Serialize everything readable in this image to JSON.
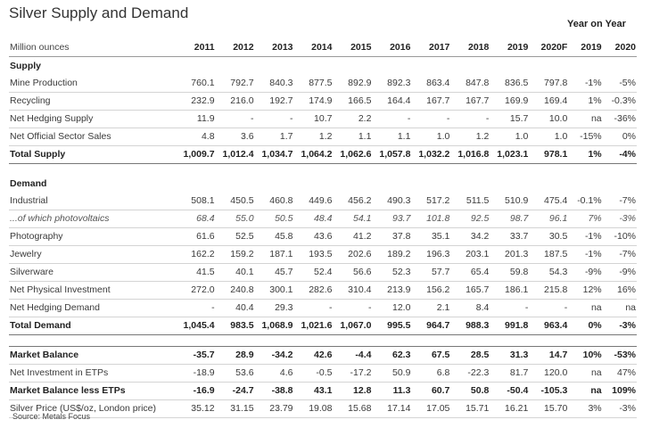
{
  "title": "Silver Supply and Demand",
  "yoy_header": "Year on Year",
  "header": {
    "label": "Million ounces",
    "cols": [
      "2011",
      "2012",
      "2013",
      "2014",
      "2015",
      "2016",
      "2017",
      "2018",
      "2019",
      "2020F",
      "2019",
      "2020"
    ]
  },
  "sections": [
    {
      "title": "Supply",
      "rows": [
        {
          "label": "Mine Production",
          "style": "row",
          "values": [
            "760.1",
            "792.7",
            "840.3",
            "877.5",
            "892.9",
            "892.3",
            "863.4",
            "847.8",
            "836.5",
            "797.8",
            "-1%",
            "-5%"
          ]
        },
        {
          "label": "Recycling",
          "style": "row",
          "values": [
            "232.9",
            "216.0",
            "192.7",
            "174.9",
            "166.5",
            "164.4",
            "167.7",
            "167.7",
            "169.9",
            "169.4",
            "1%",
            "-0.3%"
          ]
        },
        {
          "label": "Net Hedging Supply",
          "style": "row",
          "values": [
            "11.9",
            "-",
            "-",
            "10.7",
            "2.2",
            "-",
            "-",
            "-",
            "15.7",
            "10.0",
            "na",
            "-36%"
          ]
        },
        {
          "label": "Net Official Sector Sales",
          "style": "row",
          "values": [
            "4.8",
            "3.6",
            "1.7",
            "1.2",
            "1.1",
            "1.1",
            "1.0",
            "1.2",
            "1.0",
            "1.0",
            "-15%",
            "0%"
          ]
        },
        {
          "label": "Total Supply",
          "style": "total",
          "values": [
            "1,009.7",
            "1,012.4",
            "1,034.7",
            "1,064.2",
            "1,062.6",
            "1,057.8",
            "1,032.2",
            "1,016.8",
            "1,023.1",
            "978.1",
            "1%",
            "-4%"
          ]
        }
      ]
    },
    {
      "title": "Demand",
      "rows": [
        {
          "label": "Industrial",
          "style": "row",
          "values": [
            "508.1",
            "450.5",
            "460.8",
            "449.6",
            "456.2",
            "490.3",
            "517.2",
            "511.5",
            "510.9",
            "475.4",
            "-0.1%",
            "-7%"
          ]
        },
        {
          "label": "...of which photovoltaics",
          "style": "sub",
          "values": [
            "68.4",
            "55.0",
            "50.5",
            "48.4",
            "54.1",
            "93.7",
            "101.8",
            "92.5",
            "98.7",
            "96.1",
            "7%",
            "-3%"
          ]
        },
        {
          "label": "Photography",
          "style": "row",
          "values": [
            "61.6",
            "52.5",
            "45.8",
            "43.6",
            "41.2",
            "37.8",
            "35.1",
            "34.2",
            "33.7",
            "30.5",
            "-1%",
            "-10%"
          ]
        },
        {
          "label": "Jewelry",
          "style": "row",
          "values": [
            "162.2",
            "159.2",
            "187.1",
            "193.5",
            "202.6",
            "189.2",
            "196.3",
            "203.1",
            "201.3",
            "187.5",
            "-1%",
            "-7%"
          ]
        },
        {
          "label": "Silverware",
          "style": "row",
          "values": [
            "41.5",
            "40.1",
            "45.7",
            "52.4",
            "56.6",
            "52.3",
            "57.7",
            "65.4",
            "59.8",
            "54.3",
            "-9%",
            "-9%"
          ]
        },
        {
          "label": "Net Physical Investment",
          "style": "row",
          "values": [
            "272.0",
            "240.8",
            "300.1",
            "282.6",
            "310.4",
            "213.9",
            "156.2",
            "165.7",
            "186.1",
            "215.8",
            "12%",
            "16%"
          ]
        },
        {
          "label": "Net Hedging Demand",
          "style": "row",
          "values": [
            "-",
            "40.4",
            "29.3",
            "-",
            "-",
            "12.0",
            "2.1",
            "8.4",
            "-",
            "-",
            "na",
            "na"
          ]
        },
        {
          "label": "Total Demand",
          "style": "total",
          "values": [
            "1,045.4",
            "983.5",
            "1,068.9",
            "1,021.6",
            "1,067.0",
            "995.5",
            "964.7",
            "988.3",
            "991.8",
            "963.4",
            "0%",
            "-3%"
          ]
        }
      ]
    }
  ],
  "balance_rows": [
    {
      "label": "Market Balance",
      "style": "bold",
      "values": [
        "-35.7",
        "28.9",
        "-34.2",
        "42.6",
        "-4.4",
        "62.3",
        "67.5",
        "28.5",
        "31.3",
        "14.7",
        "10%",
        "-53%"
      ]
    },
    {
      "label": "Net Investment in ETPs",
      "style": "row",
      "values": [
        "-18.9",
        "53.6",
        "4.6",
        "-0.5",
        "-17.2",
        "50.9",
        "6.8",
        "-22.3",
        "81.7",
        "120.0",
        "na",
        "47%"
      ]
    },
    {
      "label": "Market Balance less ETPs",
      "style": "bold",
      "values": [
        "-16.9",
        "-24.7",
        "-38.8",
        "43.1",
        "12.8",
        "11.3",
        "60.7",
        "50.8",
        "-50.4",
        "-105.3",
        "na",
        "109%"
      ]
    },
    {
      "label": "Silver Price (US$/oz, London price)",
      "style": "row",
      "values": [
        "35.12",
        "31.15",
        "23.79",
        "19.08",
        "15.68",
        "17.14",
        "17.05",
        "15.71",
        "16.21",
        "15.70",
        "3%",
        "-3%"
      ]
    }
  ],
  "source": "Source: Metals Focus"
}
